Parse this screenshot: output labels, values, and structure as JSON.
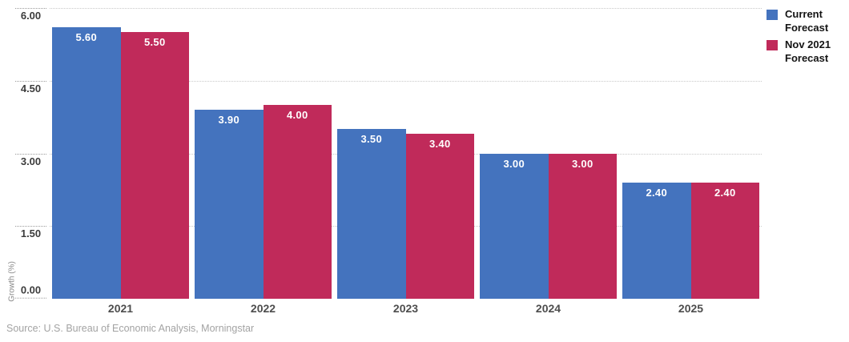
{
  "chart_data": {
    "type": "bar",
    "title": "",
    "categories": [
      "2021",
      "2022",
      "2023",
      "2024",
      "2025"
    ],
    "series": [
      {
        "name": "Current Forecast",
        "color": "#4473be",
        "values": [
          5.6,
          3.9,
          3.5,
          3.0,
          2.4
        ],
        "value_labels": [
          "5.60",
          "3.90",
          "3.50",
          "3.00",
          "2.40"
        ]
      },
      {
        "name": "Nov 2021 Forecast",
        "color": "#c02a5a",
        "values": [
          5.5,
          4.0,
          3.4,
          3.0,
          2.4
        ],
        "value_labels": [
          "5.50",
          "4.00",
          "3.40",
          "3.00",
          "2.40"
        ]
      }
    ],
    "xlabel": "",
    "ylabel": "Growth (%)",
    "ylim": [
      0,
      6
    ],
    "yticks": [
      0,
      1.5,
      3,
      4.5,
      6
    ],
    "ytick_labels": [
      "0.00",
      "1.50",
      "3.00",
      "4.50",
      "6.00"
    ],
    "grid": true,
    "legend_position": "top-right"
  },
  "source_note": "Source: U.S. Bureau of Economic Analysis, Morningstar"
}
